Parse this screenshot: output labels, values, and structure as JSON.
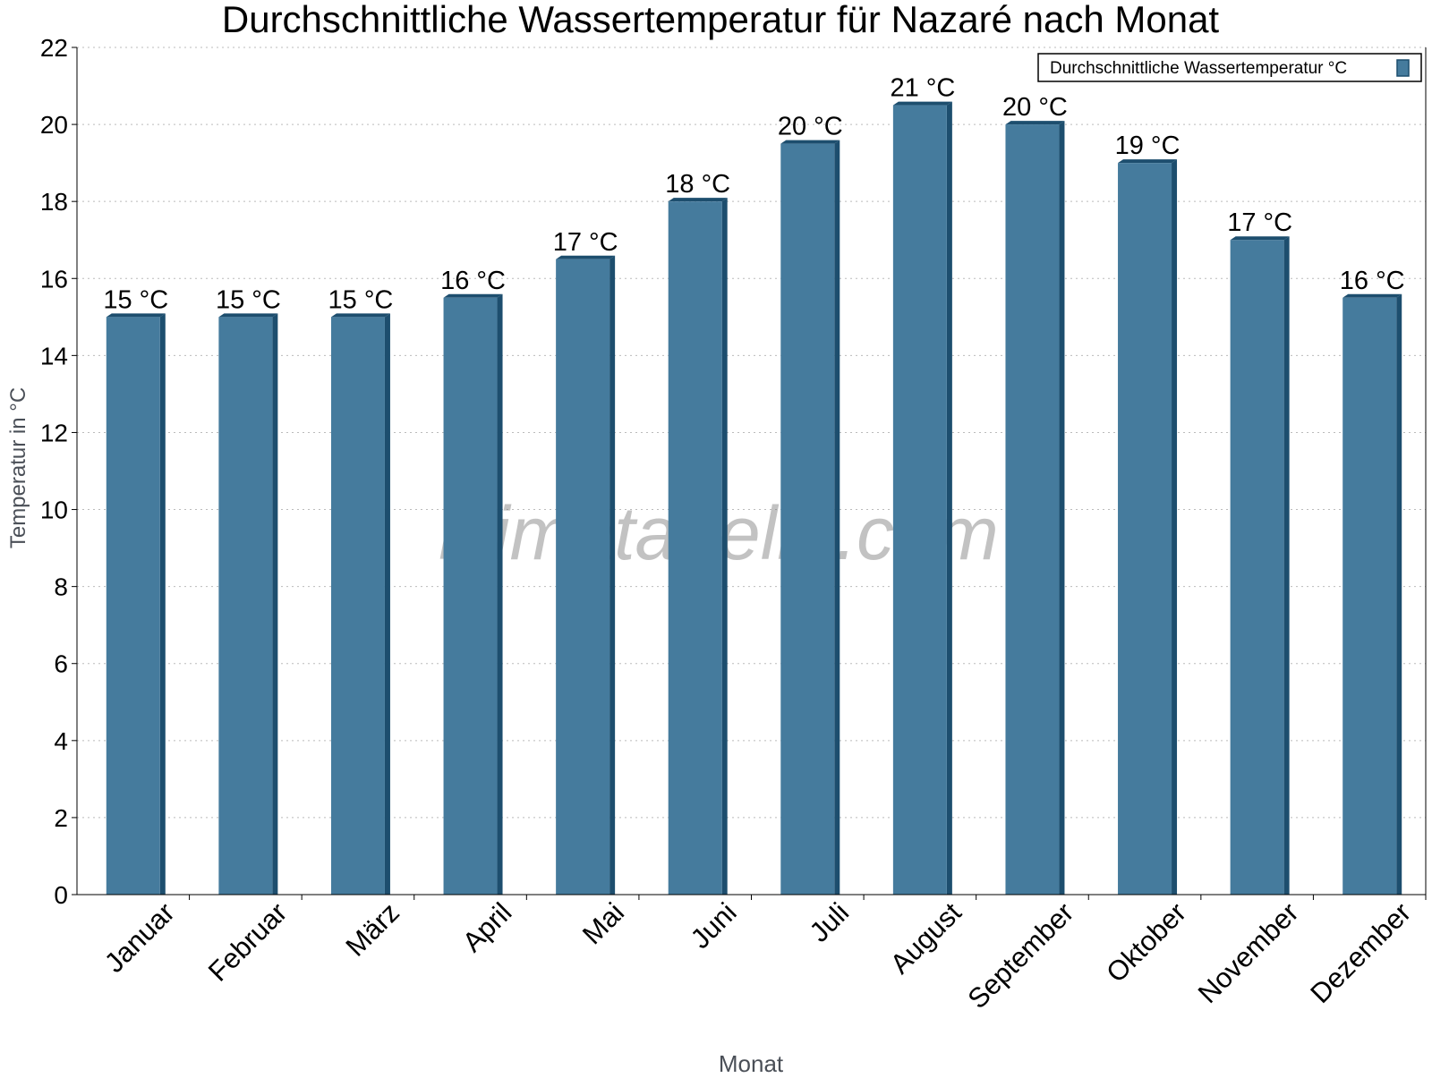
{
  "chart_data": {
    "type": "bar",
    "title": "Durchschnittliche Wassertemperatur für Nazaré nach Monat",
    "xlabel": "Monat",
    "ylabel": "Temperatur in °C",
    "categories": [
      "Januar",
      "Februar",
      "März",
      "April",
      "Mai",
      "Juni",
      "Juli",
      "August",
      "September",
      "Oktober",
      "November",
      "Dezember"
    ],
    "series": [
      {
        "name": "Durchschnittliche Wassertemperatur °C",
        "values": [
          15,
          15,
          15,
          15.5,
          16.5,
          18,
          19.5,
          20.5,
          20,
          19,
          17,
          15.5
        ],
        "labels": [
          "15 °C",
          "15 °C",
          "15 °C",
          "16 °C",
          "17 °C",
          "18 °C",
          "20 °C",
          "21 °C",
          "20 °C",
          "19 °C",
          "17 °C",
          "16 °C"
        ],
        "color": "#457b9d",
        "edge_color": "#1d4e6e"
      }
    ],
    "ylim": [
      0,
      22
    ],
    "yticks": [
      0,
      2,
      4,
      6,
      8,
      10,
      12,
      14,
      16,
      18,
      20,
      22
    ],
    "grid": true,
    "legend": "top-right",
    "watermark": "klimatabelle.com"
  }
}
